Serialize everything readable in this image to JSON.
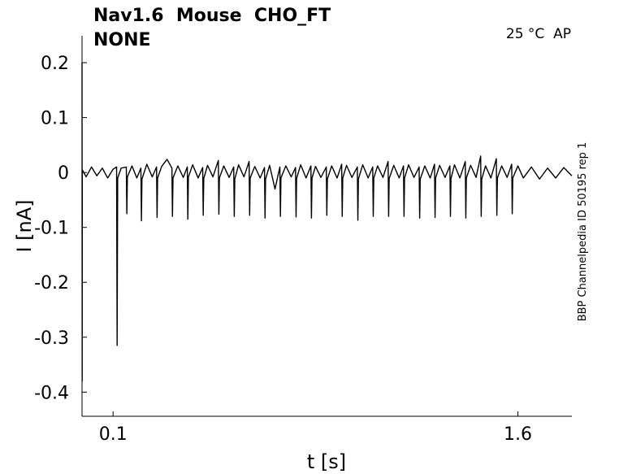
{
  "chart_data": {
    "type": "line",
    "title": "Nav1.6  Mouse  CHO_FT",
    "subtitle": "NONE",
    "annotation": "25 °C  AP",
    "side_note": "BBP Channelpedia ID 50195 rep 1",
    "x_label": "t [s]",
    "y_label": "I [nA]",
    "xlim": [
      -0.015,
      1.8
    ],
    "ylim": [
      -0.444,
      0.249
    ],
    "xticks": [
      0.1,
      1.6
    ],
    "yticks": [
      0.2,
      0.1,
      0,
      -0.1,
      -0.2,
      -0.3,
      -0.4
    ],
    "color": "#000000",
    "x": [
      -0.015,
      -0.0145,
      -0.014,
      0.0,
      0.02,
      0.04,
      0.06,
      0.08,
      0.1,
      0.113,
      0.115,
      0.117,
      0.13,
      0.149,
      0.151,
      0.153,
      0.17,
      0.188,
      0.203,
      0.205,
      0.207,
      0.225,
      0.245,
      0.261,
      0.263,
      0.265,
      0.28,
      0.3,
      0.318,
      0.32,
      0.322,
      0.34,
      0.36,
      0.375,
      0.377,
      0.379,
      0.395,
      0.415,
      0.432,
      0.434,
      0.436,
      0.45,
      0.47,
      0.49,
      0.492,
      0.494,
      0.51,
      0.53,
      0.547,
      0.549,
      0.551,
      0.565,
      0.585,
      0.604,
      0.606,
      0.608,
      0.625,
      0.645,
      0.661,
      0.663,
      0.665,
      0.68,
      0.7,
      0.718,
      0.72,
      0.722,
      0.74,
      0.76,
      0.776,
      0.778,
      0.78,
      0.795,
      0.815,
      0.833,
      0.835,
      0.837,
      0.85,
      0.87,
      0.89,
      0.892,
      0.894,
      0.91,
      0.93,
      0.947,
      0.949,
      0.951,
      0.965,
      0.985,
      1.005,
      1.007,
      1.009,
      1.025,
      1.045,
      1.062,
      1.064,
      1.066,
      1.08,
      1.1,
      1.119,
      1.121,
      1.123,
      1.14,
      1.16,
      1.176,
      1.178,
      1.18,
      1.195,
      1.215,
      1.234,
      1.236,
      1.238,
      1.255,
      1.275,
      1.291,
      1.293,
      1.295,
      1.31,
      1.33,
      1.348,
      1.35,
      1.352,
      1.365,
      1.385,
      1.405,
      1.407,
      1.409,
      1.425,
      1.445,
      1.462,
      1.464,
      1.466,
      1.48,
      1.5,
      1.52,
      1.522,
      1.524,
      1.54,
      1.56,
      1.577,
      1.579,
      1.581,
      1.6,
      1.62,
      1.65,
      1.68,
      1.71,
      1.74,
      1.77,
      1.8
    ],
    "values": [
      0.2,
      -0.38,
      0.005,
      -0.008,
      0.01,
      -0.006,
      0.008,
      -0.01,
      0.006,
      0.01,
      -0.315,
      -0.01,
      0.008,
      0.01,
      -0.075,
      -0.008,
      0.012,
      -0.01,
      0.008,
      -0.088,
      -0.012,
      0.015,
      -0.008,
      0.01,
      -0.082,
      -0.01,
      0.011,
      0.024,
      0.008,
      -0.08,
      -0.01,
      0.012,
      -0.009,
      0.01,
      -0.085,
      -0.008,
      0.014,
      -0.01,
      0.009,
      -0.078,
      -0.011,
      0.013,
      -0.008,
      0.022,
      -0.076,
      -0.01,
      0.012,
      -0.009,
      0.01,
      -0.08,
      -0.012,
      0.014,
      -0.008,
      0.02,
      -0.078,
      -0.01,
      0.011,
      -0.01,
      0.009,
      -0.083,
      -0.012,
      0.013,
      -0.03,
      0.01,
      -0.08,
      -0.01,
      0.012,
      -0.008,
      0.009,
      -0.081,
      -0.011,
      0.014,
      -0.01,
      0.012,
      -0.083,
      -0.01,
      0.011,
      -0.009,
      0.01,
      -0.078,
      -0.012,
      0.012,
      -0.01,
      0.015,
      -0.08,
      -0.01,
      0.013,
      -0.009,
      0.01,
      -0.087,
      -0.012,
      0.014,
      -0.01,
      0.01,
      -0.08,
      -0.01,
      0.012,
      -0.009,
      0.02,
      -0.08,
      -0.011,
      0.013,
      -0.01,
      0.012,
      -0.08,
      -0.01,
      0.014,
      -0.009,
      0.01,
      -0.083,
      -0.012,
      0.012,
      -0.01,
      0.015,
      -0.082,
      -0.01,
      0.013,
      -0.009,
      0.012,
      -0.08,
      -0.011,
      0.014,
      -0.01,
      0.02,
      -0.083,
      -0.01,
      0.013,
      -0.009,
      0.03,
      -0.08,
      -0.012,
      0.012,
      -0.01,
      0.025,
      -0.078,
      -0.01,
      0.012,
      -0.009,
      0.015,
      -0.075,
      -0.01,
      0.012,
      -0.01,
      0.01,
      -0.012,
      0.008,
      -0.01,
      0.009,
      -0.006
    ]
  }
}
